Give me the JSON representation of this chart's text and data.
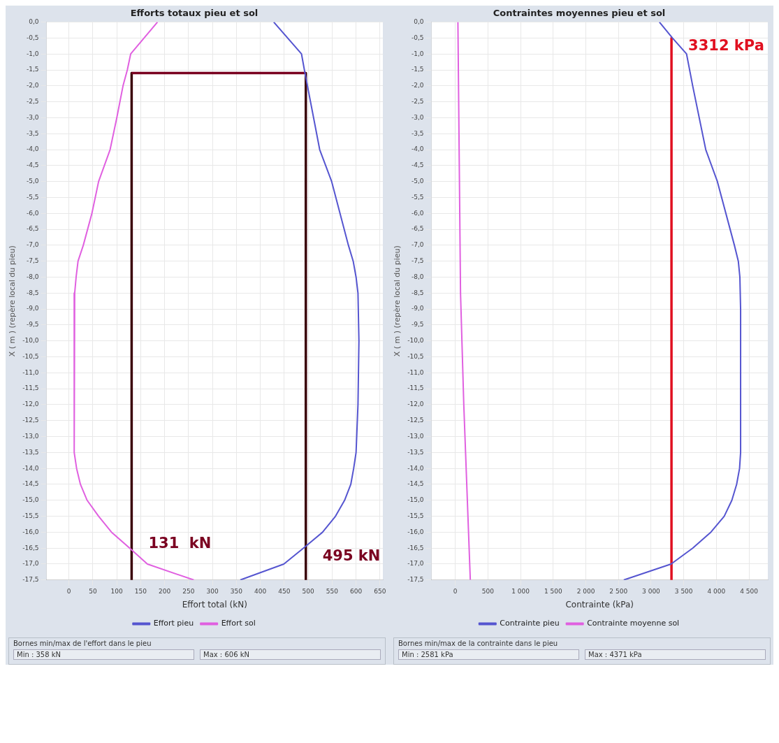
{
  "chart_data": [
    {
      "type": "line",
      "title": "Efforts totaux pieu et sol",
      "xlabel": "Effort total (kN)",
      "ylabel": "X ( m ) (repère local du pieu)",
      "grid": true,
      "legend": "bottom",
      "marker": "none",
      "line_style": "solid",
      "xlim": [
        -47,
        656
      ],
      "xticks": [
        0,
        50,
        100,
        150,
        200,
        250,
        300,
        350,
        400,
        450,
        500,
        550,
        600,
        650
      ],
      "ylim": [
        -17.5,
        0
      ],
      "yticks": [
        {
          "value": 0,
          "label": "0,0"
        },
        {
          "value": -0.5,
          "label": "-0,5"
        },
        {
          "value": -1,
          "label": "-1,0"
        },
        {
          "value": -1.5,
          "label": "-1,5"
        },
        {
          "value": -2,
          "label": "-2,0"
        },
        {
          "value": -2.5,
          "label": "-2,5"
        },
        {
          "value": -3,
          "label": "-3,0"
        },
        {
          "value": -3.5,
          "label": "-3,5"
        },
        {
          "value": -4,
          "label": "-4,0"
        },
        {
          "value": -4.5,
          "label": "-4,5"
        },
        {
          "value": -5,
          "label": "-5,0"
        },
        {
          "value": -5.5,
          "label": "-5,5"
        },
        {
          "value": -6,
          "label": "-6,0"
        },
        {
          "value": -6.5,
          "label": "-6,5"
        },
        {
          "value": -7,
          "label": "-7,0"
        },
        {
          "value": -7.5,
          "label": "-7,5"
        },
        {
          "value": -8,
          "label": "-8,0"
        },
        {
          "value": -8.5,
          "label": "-8,5"
        },
        {
          "value": -9,
          "label": "-9,0"
        },
        {
          "value": -9.5,
          "label": "-9,5"
        },
        {
          "value": -10,
          "label": "-10,0"
        },
        {
          "value": -10.5,
          "label": "-10,5"
        },
        {
          "value": -11,
          "label": "-11,0"
        },
        {
          "value": -11.5,
          "label": "-11,5"
        },
        {
          "value": -12,
          "label": "-12,0"
        },
        {
          "value": -12.5,
          "label": "-12,5"
        },
        {
          "value": -13,
          "label": "-13,0"
        },
        {
          "value": -13.5,
          "label": "-13,5"
        },
        {
          "value": -14,
          "label": "-14,0"
        },
        {
          "value": -14.5,
          "label": "-14,5"
        },
        {
          "value": -15,
          "label": "-15,0"
        },
        {
          "value": -15.5,
          "label": "-15,5"
        },
        {
          "value": -16,
          "label": "-16,0"
        },
        {
          "value": -16.5,
          "label": "-16,5"
        },
        {
          "value": -17,
          "label": "-17,0"
        },
        {
          "value": -17.5,
          "label": "-17,5"
        }
      ],
      "series": [
        {
          "name": "Effort pieu",
          "color": "#5555d0",
          "x": [
            428,
            486,
            492,
            524,
            549,
            584,
            594,
            600,
            604,
            606,
            604,
            600,
            595,
            589,
            576,
            557,
            530,
            490,
            449,
            358
          ],
          "values": [
            0,
            -1,
            -1.5,
            -4,
            -5,
            -7,
            -7.5,
            -8,
            -8.5,
            -10,
            -12,
            -13.5,
            -14,
            -14.5,
            -15,
            -15.5,
            -16,
            -16.5,
            -17,
            -17.5
          ]
        },
        {
          "name": "Effort sol",
          "color": "#e060e0",
          "x": [
            185,
            129,
            122,
            113,
            100,
            86,
            62,
            48,
            30,
            19,
            15,
            12,
            11,
            16,
            24,
            38,
            62,
            89,
            127,
            164,
            261
          ],
          "values": [
            0,
            -1,
            -1.5,
            -2,
            -3,
            -4,
            -5,
            -6,
            -7,
            -7.5,
            -8,
            -8.5,
            -13.5,
            -14,
            -14.5,
            -15,
            -15.5,
            -16,
            -16.5,
            -17,
            -17.5
          ]
        },
        {
          "color": "#7a0020",
          "x": [
            131,
            495
          ],
          "values": [
            -1.6,
            -1.6
          ]
        },
        {
          "color": "#3a0008",
          "x": [
            131,
            131
          ],
          "values": [
            -1.6,
            -17.5
          ]
        },
        {
          "color": "#3a0008",
          "x": [
            495,
            495
          ],
          "values": [
            -1.6,
            -17.5
          ]
        }
      ],
      "annotations": [
        {
          "text": "131  kN",
          "x": 131,
          "y": -16.2
        },
        {
          "text": "495 kN",
          "x": 495,
          "y": -16.6
        },
        "Bornes min/max de l'effort dans le pieu",
        "Min : 358 kN",
        "Max : 606 kN"
      ]
    },
    {
      "type": "line",
      "title": "Contraintes moyennes pieu et sol",
      "xlabel": "Contrainte (kPa)",
      "ylabel": "X ( m ) (repère local du pieu)",
      "grid": true,
      "legend": "bottom",
      "marker": "none",
      "line_style": "solid",
      "xlim": [
        -366,
        4788
      ],
      "xticks": [
        0,
        500,
        {
          "value": 1000,
          "label": "1 000"
        },
        {
          "value": 1500,
          "label": "1 500"
        },
        {
          "value": 2000,
          "label": "2 000"
        },
        {
          "value": 2500,
          "label": "2 500"
        },
        {
          "value": 3000,
          "label": "3 000"
        },
        {
          "value": 3500,
          "label": "3 500"
        },
        {
          "value": 4000,
          "label": "4 000"
        },
        {
          "value": 4500,
          "label": "4 500"
        }
      ],
      "ylim": [
        -17.5,
        0
      ],
      "yticks": [
        {
          "value": 0,
          "label": "0,0"
        },
        {
          "value": -0.5,
          "label": "-0,5"
        },
        {
          "value": -1,
          "label": "-1,0"
        },
        {
          "value": -1.5,
          "label": "-1,5"
        },
        {
          "value": -2,
          "label": "-2,0"
        },
        {
          "value": -2.5,
          "label": "-2,5"
        },
        {
          "value": -3,
          "label": "-3,0"
        },
        {
          "value": -3.5,
          "label": "-3,5"
        },
        {
          "value": -4,
          "label": "-4,0"
        },
        {
          "value": -4.5,
          "label": "-4,5"
        },
        {
          "value": -5,
          "label": "-5,0"
        },
        {
          "value": -5.5,
          "label": "-5,5"
        },
        {
          "value": -6,
          "label": "-6,0"
        },
        {
          "value": -6.5,
          "label": "-6,5"
        },
        {
          "value": -7,
          "label": "-7,0"
        },
        {
          "value": -7.5,
          "label": "-7,5"
        },
        {
          "value": -8,
          "label": "-8,0"
        },
        {
          "value": -8.5,
          "label": "-8,5"
        },
        {
          "value": -9,
          "label": "-9,0"
        },
        {
          "value": -9.5,
          "label": "-9,5"
        },
        {
          "value": -10,
          "label": "-10,0"
        },
        {
          "value": -10.5,
          "label": "-10,5"
        },
        {
          "value": -11,
          "label": "-11,0"
        },
        {
          "value": -11.5,
          "label": "-11,5"
        },
        {
          "value": -12,
          "label": "-12,0"
        },
        {
          "value": -12.5,
          "label": "-12,5"
        },
        {
          "value": -13,
          "label": "-13,0"
        },
        {
          "value": -13.5,
          "label": "-13,5"
        },
        {
          "value": -14,
          "label": "-14,0"
        },
        {
          "value": -14.5,
          "label": "-14,5"
        },
        {
          "value": -15,
          "label": "-15,0"
        },
        {
          "value": -15.5,
          "label": "-15,5"
        },
        {
          "value": -16,
          "label": "-16,0"
        },
        {
          "value": -16.5,
          "label": "-16,5"
        },
        {
          "value": -17,
          "label": "-17,0"
        },
        {
          "value": -17.5,
          "label": "-17,5"
        }
      ],
      "series": [
        {
          "name": "Contrainte pieu",
          "color": "#5555d0",
          "x": [
            3127,
            3327,
            3543,
            3637,
            3837,
            4015,
            4276,
            4336,
            4360,
            4371,
            4371,
            4355,
            4310,
            4237,
            4120,
            3915,
            3637,
            3305,
            2581
          ],
          "values": [
            0,
            -0.5,
            -1,
            -2,
            -4,
            -5,
            -7,
            -7.5,
            -8,
            -9,
            -13.5,
            -14,
            -14.5,
            -15,
            -15.5,
            -16,
            -16.5,
            -17,
            -17.5
          ]
        },
        {
          "name": "Contrainte moyenne sol",
          "color": "#e060e0",
          "x": [
            40,
            80,
            130,
            230
          ],
          "values": [
            0,
            -8.5,
            -12,
            -17.5
          ]
        },
        {
          "color": "#e01020",
          "x": [
            3312,
            3312
          ],
          "values": [
            -0.5,
            -17.5
          ]
        }
      ],
      "annotations": [
        {
          "text": "3312 kPa",
          "x": 3312,
          "y": -0.6
        },
        "Bornes min/max de la contrainte dans le pieu",
        "Min : 2581 kPa",
        "Max : 4371 kPa"
      ]
    }
  ]
}
